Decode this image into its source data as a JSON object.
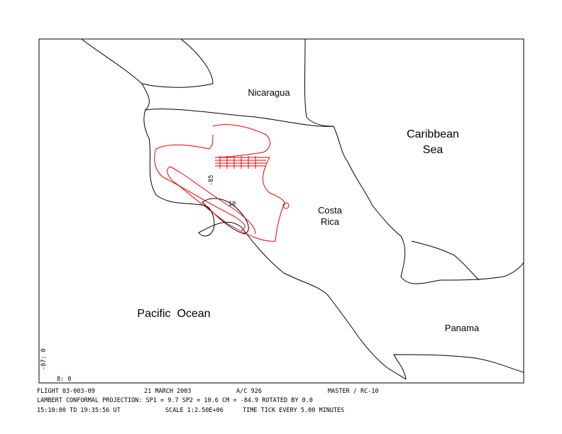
{
  "map": {
    "labels": {
      "nicaragua": "Nicaragua",
      "caribbean": [
        "Caribbean",
        "Sea"
      ],
      "costa_rica": [
        "Costa",
        "Rica"
      ],
      "pacific": "Pacific  Ocean",
      "panama": "Panama"
    },
    "grid_labels": {
      "lon_line": "-85",
      "lat_line": "10",
      "left_lon": "-87: 0",
      "bottom_lat": "8: 0"
    },
    "footer": {
      "row1": [
        "FLIGHT 03-003-09",
        "21 MARCH 2003",
        "A/C 926",
        "MASTER / RC-10"
      ],
      "row2": [
        "LAMBERT CONFORMAL PROJECTION:  SP1 =    9.7 SP2 =   10.6 CM =  -84.9 ROTATED BY     0.0"
      ],
      "row3": [
        "15:10:00 TO 19:35:56 UT",
        "SCALE 1:2.50E+06",
        "TIME TICK EVERY   5.00 MINUTES"
      ]
    }
  }
}
